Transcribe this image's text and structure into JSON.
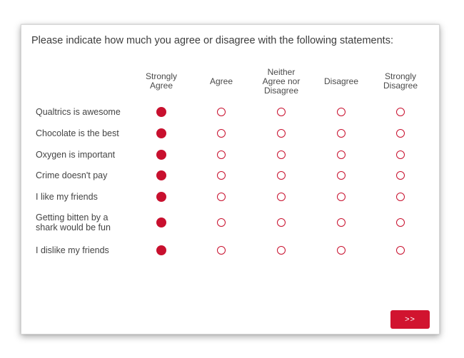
{
  "survey": {
    "question": "Please indicate how much you agree or disagree with the following statements:",
    "scale": [
      "Strongly\nAgree",
      "Agree",
      "Neither\nAgree nor\nDisagree",
      "Disagree",
      "Strongly\nDisagree"
    ],
    "statements": [
      {
        "label": "Qualtrics is awesome",
        "selected": 0
      },
      {
        "label": "Chocolate is the best",
        "selected": 0
      },
      {
        "label": "Oxygen is important",
        "selected": 0
      },
      {
        "label": "Crime doesn't pay",
        "selected": 0
      },
      {
        "label": "I like my friends",
        "selected": 0
      },
      {
        "label": "Getting bitten by a\nshark would be fun",
        "selected": 0
      },
      {
        "label": "I dislike my friends",
        "selected": 0
      }
    ],
    "next_label": ">>",
    "accent_color": "#c8102e"
  }
}
